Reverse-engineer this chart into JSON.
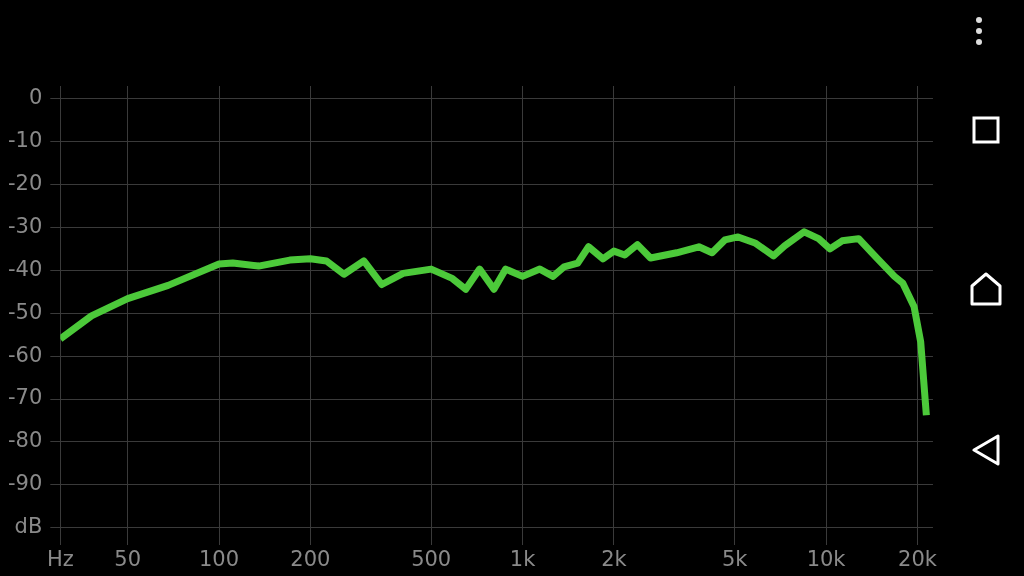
{
  "chart_data": {
    "type": "line",
    "x": [
      30,
      38,
      50,
      68,
      100,
      111,
      135,
      171,
      200,
      226,
      258,
      300,
      344,
      404,
      500,
      584,
      650,
      722,
      805,
      880,
      1000,
      1140,
      1260,
      1370,
      1520,
      1650,
      1840,
      2000,
      2170,
      2390,
      2640,
      3220,
      3810,
      4210,
      4640,
      5130,
      5830,
      6710,
      7300,
      8470,
      9450,
      10300,
      11300,
      12800,
      14600,
      16800,
      17900,
      19500,
      20500,
      21400
    ],
    "series": [
      {
        "color": "#4cc93a",
        "values": [
          -56,
          -50.6,
          -46.6,
          -43.5,
          -38.5,
          -38.3,
          -39,
          -37.6,
          -37.3,
          -37.8,
          -40.9,
          -37.8,
          -43.3,
          -40.7,
          -39.7,
          -41.8,
          -44.4,
          -39.7,
          -44.4,
          -39.7,
          -41.4,
          -39.7,
          -41.4,
          -39.2,
          -38.3,
          -34.5,
          -37.3,
          -35.5,
          -36.4,
          -34,
          -37.1,
          -35.9,
          -34.5,
          -35.9,
          -32.9,
          -32.2,
          -33.6,
          -36.6,
          -34.3,
          -31,
          -32.6,
          -35,
          -33.1,
          -32.6,
          -36.9,
          -41.4,
          -43,
          -48.5,
          -56.7,
          -73.8
        ]
      }
    ],
    "log": "x",
    "xlim": [
      30,
      22500
    ],
    "xticks": [
      {
        "value": 30,
        "label": "Hz"
      },
      50,
      100,
      200,
      500,
      {
        "value": 1000,
        "label": "1k"
      },
      {
        "value": 2000,
        "label": "2k"
      },
      {
        "value": 5000,
        "label": "5k"
      },
      {
        "value": 10000,
        "label": "10k"
      },
      {
        "value": 20000,
        "label": "20k"
      }
    ],
    "ylim": [
      -104,
      3
    ],
    "yticks": [
      0,
      -10,
      -20,
      -30,
      -40,
      -50,
      -60,
      -70,
      -80,
      -90,
      {
        "value": -100,
        "label": "dB"
      }
    ],
    "grid": true,
    "marker": "none",
    "line_style": "solid"
  }
}
